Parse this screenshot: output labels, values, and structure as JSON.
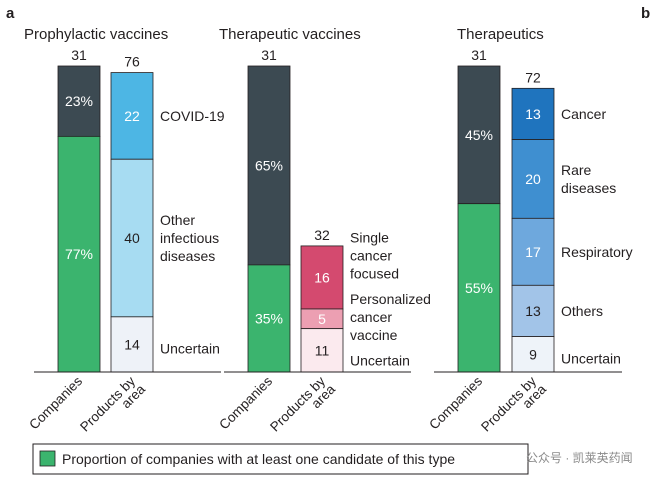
{
  "figure": {
    "panel_letters": [
      "a",
      "b"
    ],
    "legend_text": "Proportion of companies with at least one candidate of this type",
    "watermark": "公众号 · 凯莱英药闻"
  },
  "colors": {
    "companies_green": "#3bb46e",
    "companies_dark": "#3c4a52",
    "prophylactic_blue": "#4db6e4",
    "prophylactic_light": "#a7dcf2",
    "uncertain_fill": "#eef2f8",
    "single_cancer_pink": "#d44a6f",
    "personalized_pink": "#ec9fb2",
    "uncertain_pink": "#fbeaee",
    "cancer_blue": "#1f74be",
    "rare_blue": "#3f8fd0",
    "respiratory_blue": "#6ea8dd",
    "others_blue": "#a2c4e8",
    "uncertain_blue": "#eef3f9"
  },
  "chart_data": [
    {
      "type": "bar",
      "title": "Prophylactic vaccines",
      "categories": [
        "Companies",
        "Products by area"
      ],
      "totals": [
        31,
        76
      ],
      "companies": [
        {
          "name": "",
          "value": 23,
          "label": "23%",
          "color": "#3c4a52"
        },
        {
          "name": "",
          "value": 77,
          "label": "77%",
          "color": "#3bb46e"
        }
      ],
      "products": [
        {
          "name": "COVID-19",
          "value": 22,
          "color": "#4db6e4"
        },
        {
          "name": "Other infectious diseases",
          "value": 40,
          "color": "#a7dcf2"
        },
        {
          "name": "Uncertain",
          "value": 14,
          "color": "#eef2f8"
        }
      ],
      "product_labels": [
        {
          "lines": [
            "COVID-19"
          ]
        },
        {
          "lines": [
            "Other",
            "infectious",
            "diseases"
          ]
        },
        {
          "lines": [
            "Uncertain"
          ]
        }
      ]
    },
    {
      "type": "bar",
      "title": "Therapeutic vaccines",
      "categories": [
        "Companies",
        "Products by area"
      ],
      "totals": [
        31,
        32
      ],
      "companies": [
        {
          "name": "",
          "value": 65,
          "label": "65%",
          "color": "#3c4a52"
        },
        {
          "name": "",
          "value": 35,
          "label": "35%",
          "color": "#3bb46e"
        }
      ],
      "products": [
        {
          "name": "Single cancer focused",
          "value": 16,
          "color": "#d44a6f"
        },
        {
          "name": "Personalized cancer vaccine",
          "value": 5,
          "color": "#ec9fb2"
        },
        {
          "name": "Uncertain",
          "value": 11,
          "color": "#fbeaee"
        }
      ],
      "product_labels": [
        {
          "lines": [
            "Single",
            "cancer",
            "focused"
          ]
        },
        {
          "lines": [
            "Personalized",
            "cancer",
            "vaccine"
          ]
        },
        {
          "lines": [
            "Uncertain"
          ]
        }
      ]
    },
    {
      "type": "bar",
      "title": "Therapeutics",
      "categories": [
        "Companies",
        "Products by area"
      ],
      "totals": [
        31,
        72
      ],
      "companies": [
        {
          "name": "",
          "value": 45,
          "label": "45%",
          "color": "#3c4a52"
        },
        {
          "name": "",
          "value": 55,
          "label": "55%",
          "color": "#3bb46e"
        }
      ],
      "products": [
        {
          "name": "Cancer",
          "value": 13,
          "color": "#1f74be"
        },
        {
          "name": "Rare diseases",
          "value": 20,
          "color": "#3f8fd0"
        },
        {
          "name": "Respiratory",
          "value": 17,
          "color": "#6ea8dd"
        },
        {
          "name": "Others",
          "value": 13,
          "color": "#a2c4e8"
        },
        {
          "name": "Uncertain",
          "value": 9,
          "color": "#eef3f9"
        }
      ],
      "product_labels": [
        {
          "lines": [
            "Cancer"
          ]
        },
        {
          "lines": [
            "Rare",
            "diseases"
          ]
        },
        {
          "lines": [
            "Respiratory"
          ]
        },
        {
          "lines": [
            "Others"
          ]
        },
        {
          "lines": [
            "Uncertain"
          ]
        }
      ]
    }
  ]
}
